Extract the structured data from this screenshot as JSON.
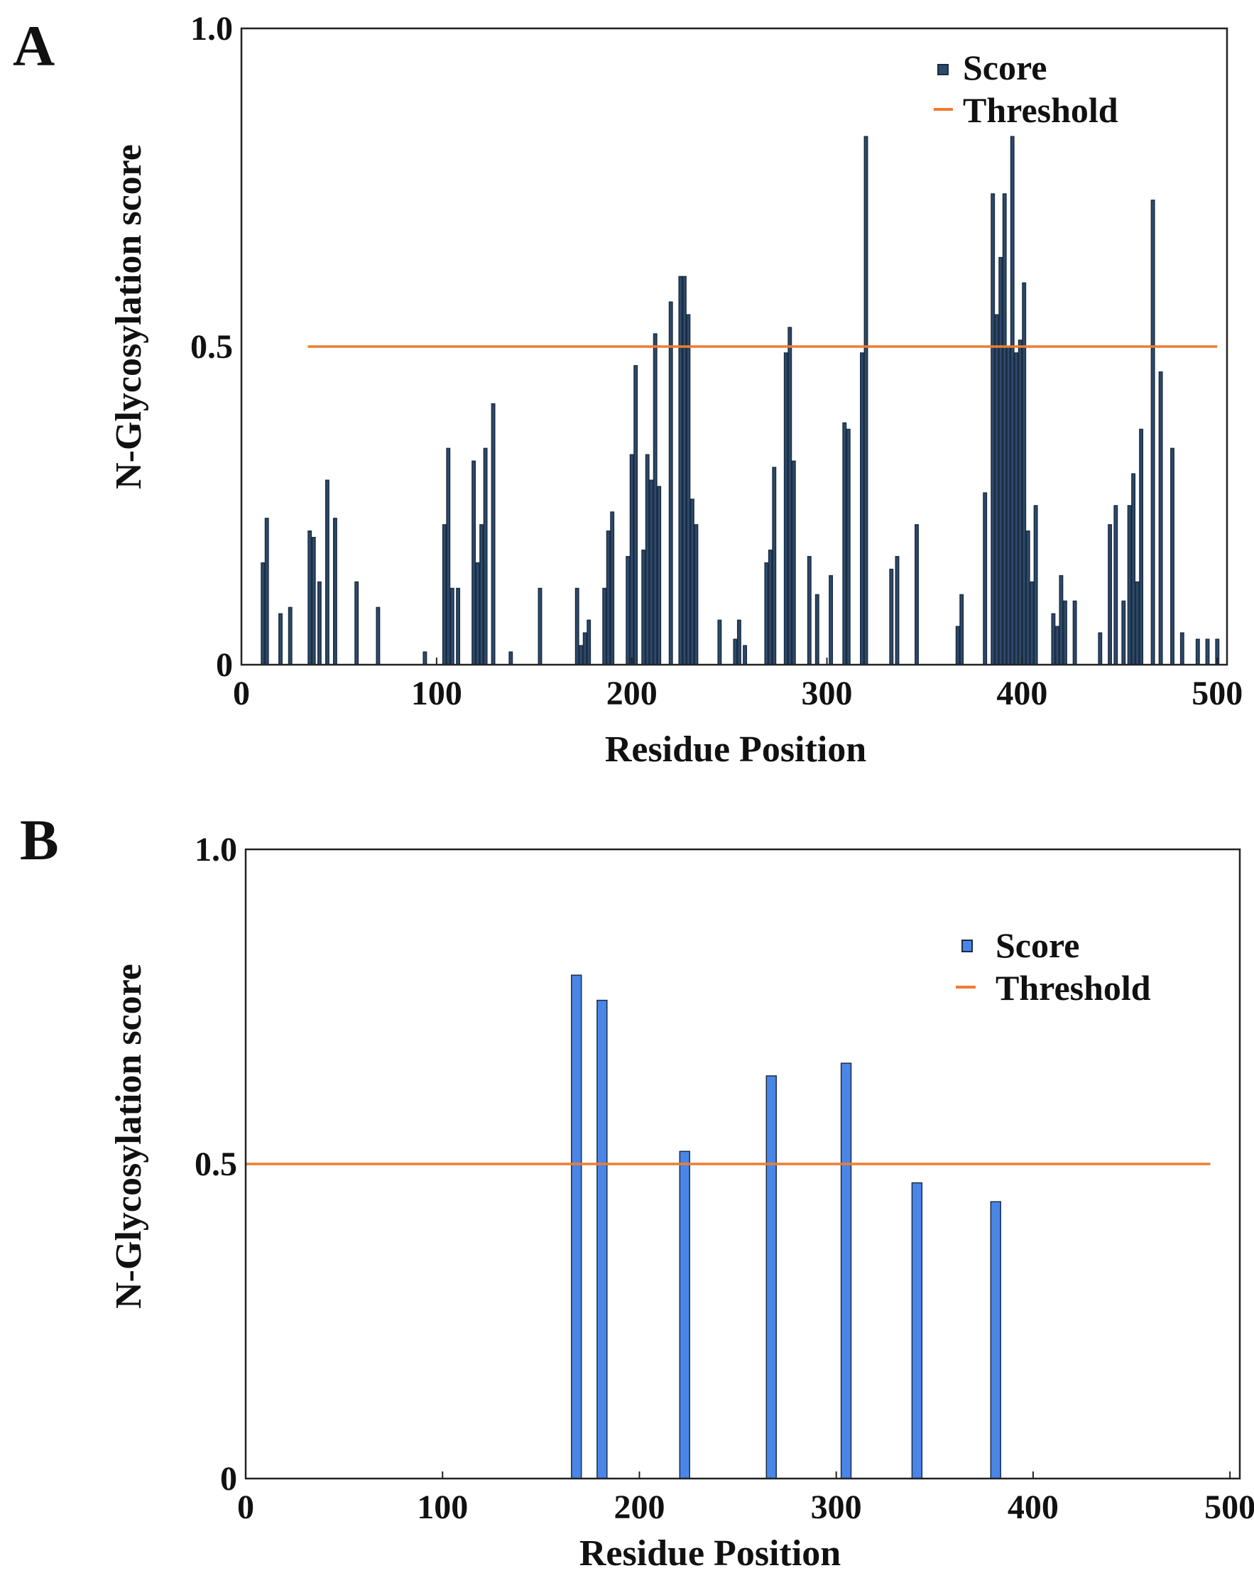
{
  "chart_data": [
    {
      "type": "bar",
      "panel_label": "A",
      "xlabel": "Residue Position",
      "ylabel": "N-Glycosylation score",
      "xlim": [
        0,
        505
      ],
      "ylim": [
        0,
        1.0
      ],
      "xticks": [
        0,
        100,
        200,
        300,
        400,
        500
      ],
      "yticks": [
        {
          "value": 0,
          "label": "0"
        },
        {
          "value": 0.5,
          "label": "0.5"
        },
        {
          "value": 1.0,
          "label": "1.0"
        }
      ],
      "legend": {
        "position": "top-right",
        "score_label": "Score",
        "threshold_label": "Threshold"
      },
      "threshold": 0.5,
      "colors": {
        "bar_fill": "#2e4a6b",
        "bar_stroke": "#1a2d42",
        "threshold": "#ed7d31"
      },
      "series": [
        {
          "name": "Score",
          "x": [
            11,
            13,
            20,
            25,
            35,
            37,
            40,
            44,
            48,
            59,
            70,
            94,
            104,
            106,
            108,
            111,
            119,
            121,
            123,
            125,
            129,
            138,
            153,
            172,
            174,
            176,
            178,
            186,
            188,
            190,
            198,
            200,
            202,
            206,
            208,
            210,
            212,
            214,
            220,
            225,
            227,
            229,
            231,
            233,
            245,
            253,
            255,
            258,
            269,
            271,
            273,
            279,
            281,
            283,
            291,
            295,
            302,
            309,
            311,
            318,
            320,
            333,
            336,
            346,
            367,
            369,
            381,
            385,
            387,
            389,
            391,
            393,
            395,
            397,
            399,
            401,
            403,
            405,
            407,
            416,
            418,
            420,
            422,
            427,
            440,
            445,
            448,
            452,
            455,
            457,
            459,
            461,
            467,
            471,
            477,
            482,
            490,
            495,
            500
          ],
          "values": [
            0.16,
            0.23,
            0.08,
            0.09,
            0.21,
            0.2,
            0.13,
            0.29,
            0.23,
            0.13,
            0.09,
            0.02,
            0.22,
            0.34,
            0.12,
            0.12,
            0.32,
            0.16,
            0.22,
            0.34,
            0.41,
            0.02,
            0.12,
            0.12,
            0.03,
            0.05,
            0.07,
            0.12,
            0.21,
            0.24,
            0.17,
            0.33,
            0.47,
            0.18,
            0.33,
            0.29,
            0.52,
            0.28,
            0.57,
            0.61,
            0.61,
            0.55,
            0.26,
            0.22,
            0.07,
            0.04,
            0.07,
            0.03,
            0.16,
            0.18,
            0.31,
            0.49,
            0.53,
            0.32,
            0.17,
            0.11,
            0.14,
            0.38,
            0.37,
            0.49,
            0.83,
            0.15,
            0.17,
            0.22,
            0.06,
            0.11,
            0.27,
            0.74,
            0.55,
            0.64,
            0.74,
            0.5,
            0.83,
            0.49,
            0.51,
            0.6,
            0.21,
            0.13,
            0.25,
            0.08,
            0.06,
            0.14,
            0.1,
            0.1,
            0.05,
            0.22,
            0.25,
            0.1,
            0.25,
            0.3,
            0.13,
            0.37,
            0.73,
            0.46,
            0.34,
            0.05,
            0.04,
            0.04,
            0.04
          ],
          "bar_width_units": 1.6
        }
      ]
    },
    {
      "type": "bar",
      "panel_label": "B",
      "xlabel": "Residue Position",
      "ylabel": "N-Glycosylation score",
      "xlim": [
        0,
        505
      ],
      "ylim": [
        0,
        1.0
      ],
      "xticks": [
        0,
        100,
        200,
        300,
        400,
        500
      ],
      "yticks": [
        {
          "value": 0,
          "label": "0"
        },
        {
          "value": 0.5,
          "label": "0.5"
        },
        {
          "value": 1.0,
          "label": "1.0"
        }
      ],
      "legend": {
        "position": "top-right",
        "score_label": "Score",
        "threshold_label": "Threshold"
      },
      "threshold": 0.5,
      "colors": {
        "bar_fill": "#4a86e8",
        "bar_stroke": "#1a2d42",
        "threshold": "#ed7d31"
      },
      "series": [
        {
          "name": "Score",
          "x": [
            168,
            181,
            223,
            267,
            305,
            341,
            381
          ],
          "values": [
            0.8,
            0.76,
            0.52,
            0.64,
            0.66,
            0.47,
            0.44
          ],
          "bar_width_units": 5
        }
      ]
    }
  ]
}
